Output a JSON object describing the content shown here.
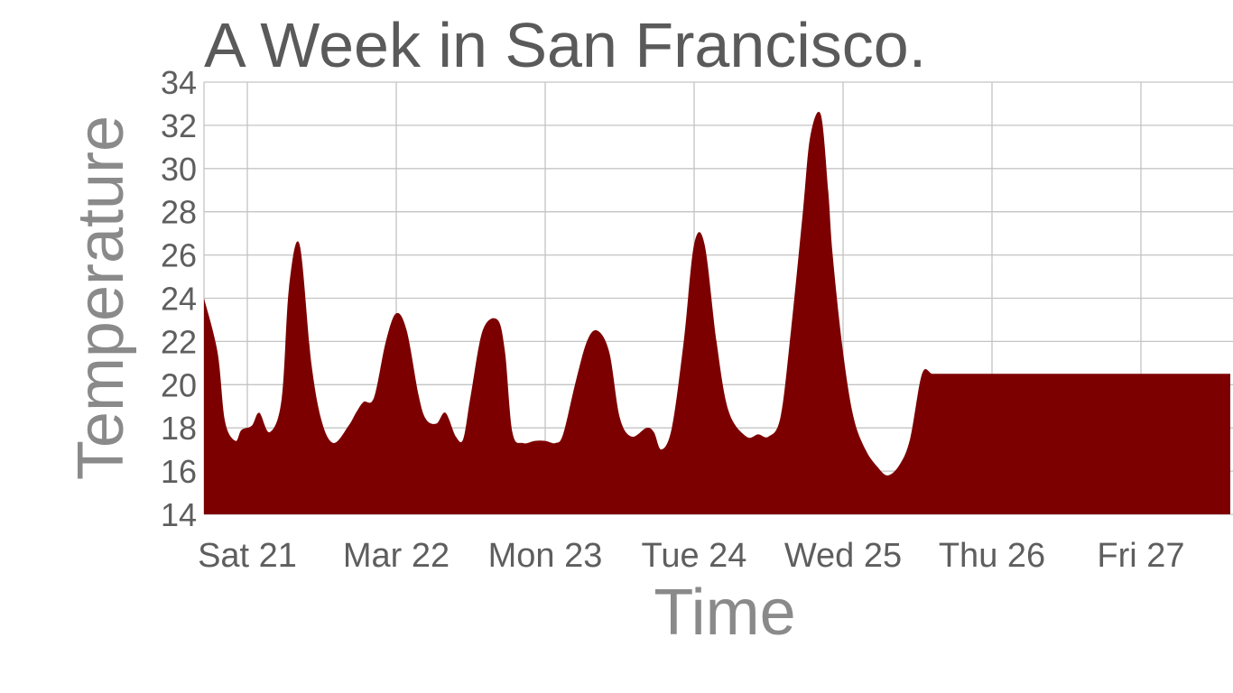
{
  "chart_data": {
    "type": "area",
    "title": "A Week in San Francisco.",
    "xlabel": "Time",
    "ylabel": "Temperature",
    "x_tick_labels": [
      "Sat 21",
      "Mar 22",
      "Mon 23",
      "Tue 24",
      "Wed 25",
      "Thu 26",
      "Fri 27"
    ],
    "y_ticks": [
      14,
      16,
      18,
      20,
      22,
      24,
      26,
      28,
      30,
      32,
      34
    ],
    "ylim": [
      14,
      34
    ],
    "x_unit": "days",
    "xlim": [
      -0.3,
      6.6
    ],
    "grid": true,
    "colors": {
      "fill": "#7d0000",
      "grid": "#c4c4c4",
      "text": "#5e5e5e"
    },
    "series": [
      {
        "x": [
          -0.3,
          -0.2,
          -0.15,
          -0.08,
          -0.04,
          0.03,
          0.08,
          0.15,
          0.23,
          0.28,
          0.35,
          0.43,
          0.5,
          0.58,
          0.68,
          0.73,
          0.78,
          0.85,
          0.93,
          1.0,
          1.07,
          1.15,
          1.2,
          1.27,
          1.33,
          1.4,
          1.45,
          1.5,
          1.58,
          1.68,
          1.73,
          1.78,
          1.85,
          1.93,
          2.0,
          2.07,
          2.12,
          2.2,
          2.28,
          2.35,
          2.43,
          2.5,
          2.58,
          2.68,
          2.73,
          2.78,
          2.85,
          2.93,
          3.0,
          3.07,
          3.15,
          3.23,
          3.35,
          3.43,
          3.5,
          3.58,
          3.65,
          3.73,
          3.78,
          3.85,
          3.9,
          3.93,
          4.0,
          4.07,
          4.15,
          4.23,
          4.3,
          4.38,
          4.45,
          4.53,
          4.6,
          4.68,
          4.73,
          4.8,
          4.85,
          4.93,
          5.0,
          5.08,
          5.15,
          5.2,
          5.27,
          5.35,
          5.43,
          5.5,
          5.55,
          5.6,
          5.65,
          5.68,
          5.73,
          5.8,
          5.88,
          5.93,
          6.0,
          6.08,
          6.15,
          6.22,
          6.28,
          6.35,
          6.4,
          6.45,
          6.55,
          6.6
        ],
        "y": [
          24.0,
          21.5,
          18.3,
          17.4,
          17.9,
          18.1,
          18.7,
          17.8,
          19.3,
          24.5,
          26.5,
          21.0,
          18.3,
          17.3,
          18.1,
          18.7,
          19.2,
          19.4,
          22.0,
          23.3,
          22.5,
          19.5,
          18.4,
          18.2,
          18.7,
          17.6,
          17.5,
          19.5,
          22.5,
          23.0,
          21.5,
          17.8,
          17.3,
          17.4,
          17.4,
          17.3,
          17.7,
          20.0,
          22.0,
          22.5,
          21.5,
          18.5,
          17.6,
          18.0,
          17.8,
          17.0,
          18.0,
          22.0,
          26.5,
          26.5,
          22.0,
          18.8,
          17.6,
          17.7,
          17.6,
          18.5,
          22.5,
          28.0,
          31.5,
          32.5,
          29.0,
          26.0,
          21.5,
          18.5,
          17.0,
          16.2,
          15.8,
          16.3,
          17.5,
          20.5,
          20.5,
          20.5,
          20.5,
          20.5,
          20.5,
          20.5,
          20.5,
          20.5,
          20.5,
          20.5,
          20.5,
          20.5,
          20.5,
          20.5,
          20.5,
          20.5,
          20.5,
          20.5,
          20.5,
          20.5,
          20.5,
          20.5,
          20.5,
          20.5,
          20.5,
          20.5,
          20.5,
          20.5,
          20.5,
          20.5,
          20.5,
          20.5
        ]
      }
    ]
  }
}
